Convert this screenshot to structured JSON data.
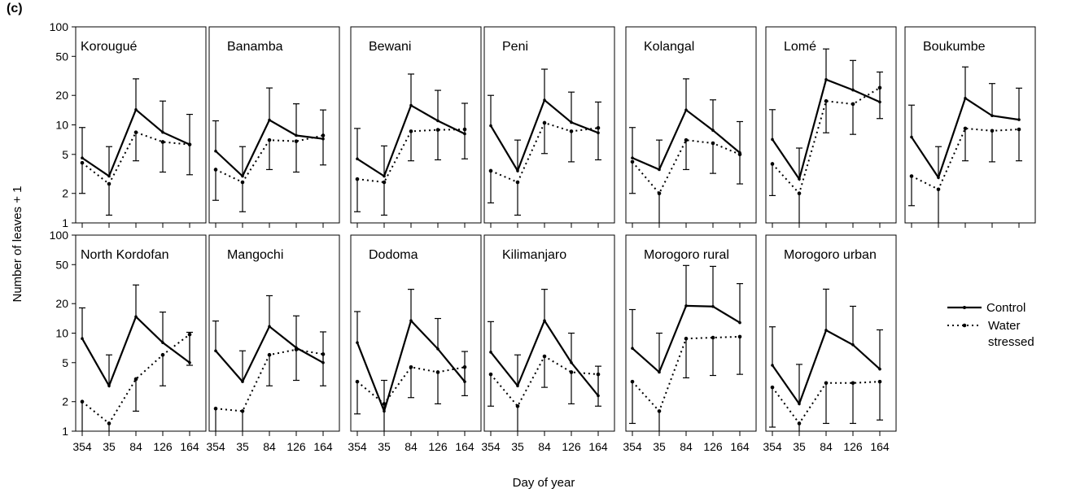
{
  "panel_label": "(c)",
  "chart_data": {
    "type": "line",
    "panel_label": "(c)",
    "xlabel": "Day of year",
    "ylabel": "Number of leaves + 1",
    "categories": [
      "354",
      "35",
      "84",
      "126",
      "164"
    ],
    "yscale": "log",
    "ylim": [
      1,
      100
    ],
    "yticks": [
      "1",
      "2",
      "5",
      "10",
      "20",
      "50",
      "100"
    ],
    "legend": {
      "placement": "right",
      "control": "Control",
      "water_line1": "Water",
      "water_line2": "stressed"
    },
    "series_styles": {
      "Control": "solid",
      "Water stressed": "dotted"
    },
    "panels": [
      {
        "site": "Korougué",
        "control": [
          4.6,
          3.0,
          14.3,
          8.4,
          6.3
        ],
        "control_err": [
          9.4,
          6.0,
          29.5,
          17.5,
          12.8
        ],
        "water": [
          4.1,
          2.5,
          8.4,
          6.7,
          6.3
        ],
        "water_err": [
          2.0,
          1.2,
          4.3,
          3.3,
          3.1
        ]
      },
      {
        "site": "Banamba",
        "control": [
          5.4,
          3.0,
          11.2,
          7.8,
          7.2
        ],
        "control_err": [
          11.0,
          6.0,
          23.8,
          16.4,
          14.2
        ],
        "water": [
          3.5,
          2.6,
          7.0,
          6.8,
          7.8
        ],
        "water_err": [
          1.7,
          1.3,
          3.5,
          3.3,
          3.9
        ]
      },
      {
        "site": "Bewani",
        "control": [
          4.5,
          3.0,
          15.8,
          11.0,
          8.1
        ],
        "control_err": [
          9.2,
          6.1,
          33.0,
          22.5,
          16.6
        ],
        "water": [
          2.8,
          2.6,
          8.6,
          8.9,
          9.0
        ],
        "water_err": [
          1.3,
          1.2,
          4.3,
          4.4,
          4.5
        ]
      },
      {
        "site": "Peni",
        "control": [
          9.8,
          3.4,
          17.9,
          10.6,
          8.3
        ],
        "control_err": [
          20.0,
          7.0,
          37.0,
          21.6,
          17.1
        ],
        "water": [
          3.4,
          2.6,
          10.5,
          8.6,
          9.3
        ],
        "water_err": [
          1.6,
          1.2,
          5.1,
          4.2,
          4.4
        ]
      },
      {
        "site": "Kolangal",
        "control": [
          4.6,
          3.5,
          14.2,
          8.8,
          5.2
        ],
        "control_err": [
          9.4,
          7.0,
          29.5,
          18.0,
          10.8
        ],
        "water": [
          4.2,
          2.0,
          7.0,
          6.5,
          5.0
        ],
        "water_err": [
          2.0,
          1.0,
          3.5,
          3.2,
          2.5
        ]
      },
      {
        "site": "Lomé",
        "control": [
          7.1,
          2.8,
          29.0,
          22.7,
          17.1
        ],
        "control_err": [
          14.3,
          5.8,
          59.5,
          45.4,
          34.6
        ],
        "water": [
          4.0,
          2.0,
          17.5,
          16.3,
          23.9
        ],
        "water_err": [
          1.9,
          1.0,
          8.3,
          8.0,
          11.6
        ]
      },
      {
        "site": "Boukumbe",
        "control": [
          7.5,
          2.9,
          18.7,
          12.4,
          11.3
        ],
        "control_err": [
          15.9,
          6.0,
          39.0,
          26.4,
          23.7
        ],
        "water": [
          3.0,
          2.2,
          9.2,
          8.7,
          9.0
        ],
        "water_err": [
          1.5,
          1.0,
          4.3,
          4.2,
          4.3
        ]
      },
      {
        "site": "North Kordofan",
        "control": [
          8.8,
          2.9,
          14.7,
          8.0,
          5.0
        ],
        "control_err": [
          18.1,
          6.0,
          31.0,
          16.4,
          10.2
        ],
        "water": [
          2.0,
          1.2,
          3.4,
          6.0,
          9.7
        ],
        "water_err": [
          1.0,
          1.0,
          1.6,
          2.9,
          4.7
        ]
      },
      {
        "site": "Mangochi",
        "control": [
          6.6,
          3.2,
          11.7,
          7.1,
          5.0
        ],
        "control_err": [
          13.3,
          6.6,
          24.1,
          15.0,
          10.3
        ],
        "water": [
          1.7,
          1.6,
          6.0,
          6.8,
          6.1
        ],
        "water_err": [
          1.0,
          1.0,
          2.9,
          3.3,
          2.9
        ]
      },
      {
        "site": "Dodoma",
        "control": [
          8.0,
          1.6,
          13.4,
          6.9,
          3.2
        ],
        "control_err": [
          16.6,
          3.3,
          28.0,
          14.1,
          6.5
        ],
        "water": [
          3.2,
          1.9,
          4.5,
          4.0,
          4.5
        ],
        "water_err": [
          1.5,
          1.0,
          2.2,
          1.9,
          2.3
        ]
      },
      {
        "site": "Kilimanjaro",
        "control": [
          6.4,
          2.9,
          13.4,
          5.0,
          2.3
        ],
        "control_err": [
          13.1,
          6.0,
          28.0,
          10.0,
          4.6
        ],
        "water": [
          3.8,
          1.8,
          5.8,
          4.0,
          3.8
        ],
        "water_err": [
          1.8,
          1.0,
          2.8,
          1.9,
          1.8
        ]
      },
      {
        "site": "Morogoro rural",
        "control": [
          7.0,
          4.0,
          19.0,
          18.7,
          12.8
        ],
        "control_err": [
          17.4,
          10.0,
          49.0,
          48.0,
          32.0
        ],
        "water": [
          3.2,
          1.6,
          8.8,
          9.0,
          9.2
        ],
        "water_err": [
          1.2,
          1.0,
          3.5,
          3.7,
          3.8
        ]
      },
      {
        "site": "Morogoro urban",
        "control": [
          4.7,
          1.9,
          10.7,
          7.6,
          4.3
        ],
        "control_err": [
          11.6,
          4.8,
          28.1,
          18.8,
          10.8
        ],
        "water": [
          2.8,
          1.2,
          3.1,
          3.1,
          3.2
        ],
        "water_err": [
          1.1,
          1.0,
          1.2,
          1.2,
          1.3
        ]
      }
    ]
  }
}
